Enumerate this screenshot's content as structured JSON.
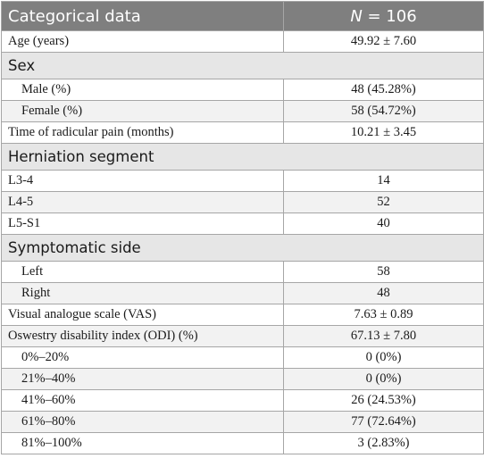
{
  "header": {
    "col1": "Categorical data",
    "n_symbol": "N",
    "n_value": " = 106"
  },
  "rows": [
    {
      "label": "Age (years)",
      "value": "49.92 ± 7.60"
    },
    {
      "group": "Sex"
    },
    {
      "label": "Male (%)",
      "value": "48 (45.28%)"
    },
    {
      "label": "Female (%)",
      "value": "58 (54.72%)"
    },
    {
      "label": "Time of radicular pain (months)",
      "value": "10.21 ± 3.45"
    },
    {
      "group": "Herniation segment"
    },
    {
      "label": "L3-4",
      "value": "14"
    },
    {
      "label": "L4-5",
      "value": "52"
    },
    {
      "label": "L5-S1",
      "value": "40"
    },
    {
      "group": "Symptomatic side"
    },
    {
      "label": "Left",
      "value": "58"
    },
    {
      "label": "Right",
      "value": "48"
    },
    {
      "label": "Visual analogue scale (VAS)",
      "value": "7.63 ± 0.89"
    },
    {
      "label": "Oswestry disability index (ODI) (%)",
      "value": "67.13 ± 7.80"
    },
    {
      "label": "0%–20%",
      "value": "0 (0%)"
    },
    {
      "label": "21%–40%",
      "value": "0 (0%)"
    },
    {
      "label": "41%–60%",
      "value": "26 (24.53%)"
    },
    {
      "label": "61%–80%",
      "value": "77 (72.64%)"
    },
    {
      "label": "81%–100%",
      "value": "3 (2.83%)"
    }
  ]
}
